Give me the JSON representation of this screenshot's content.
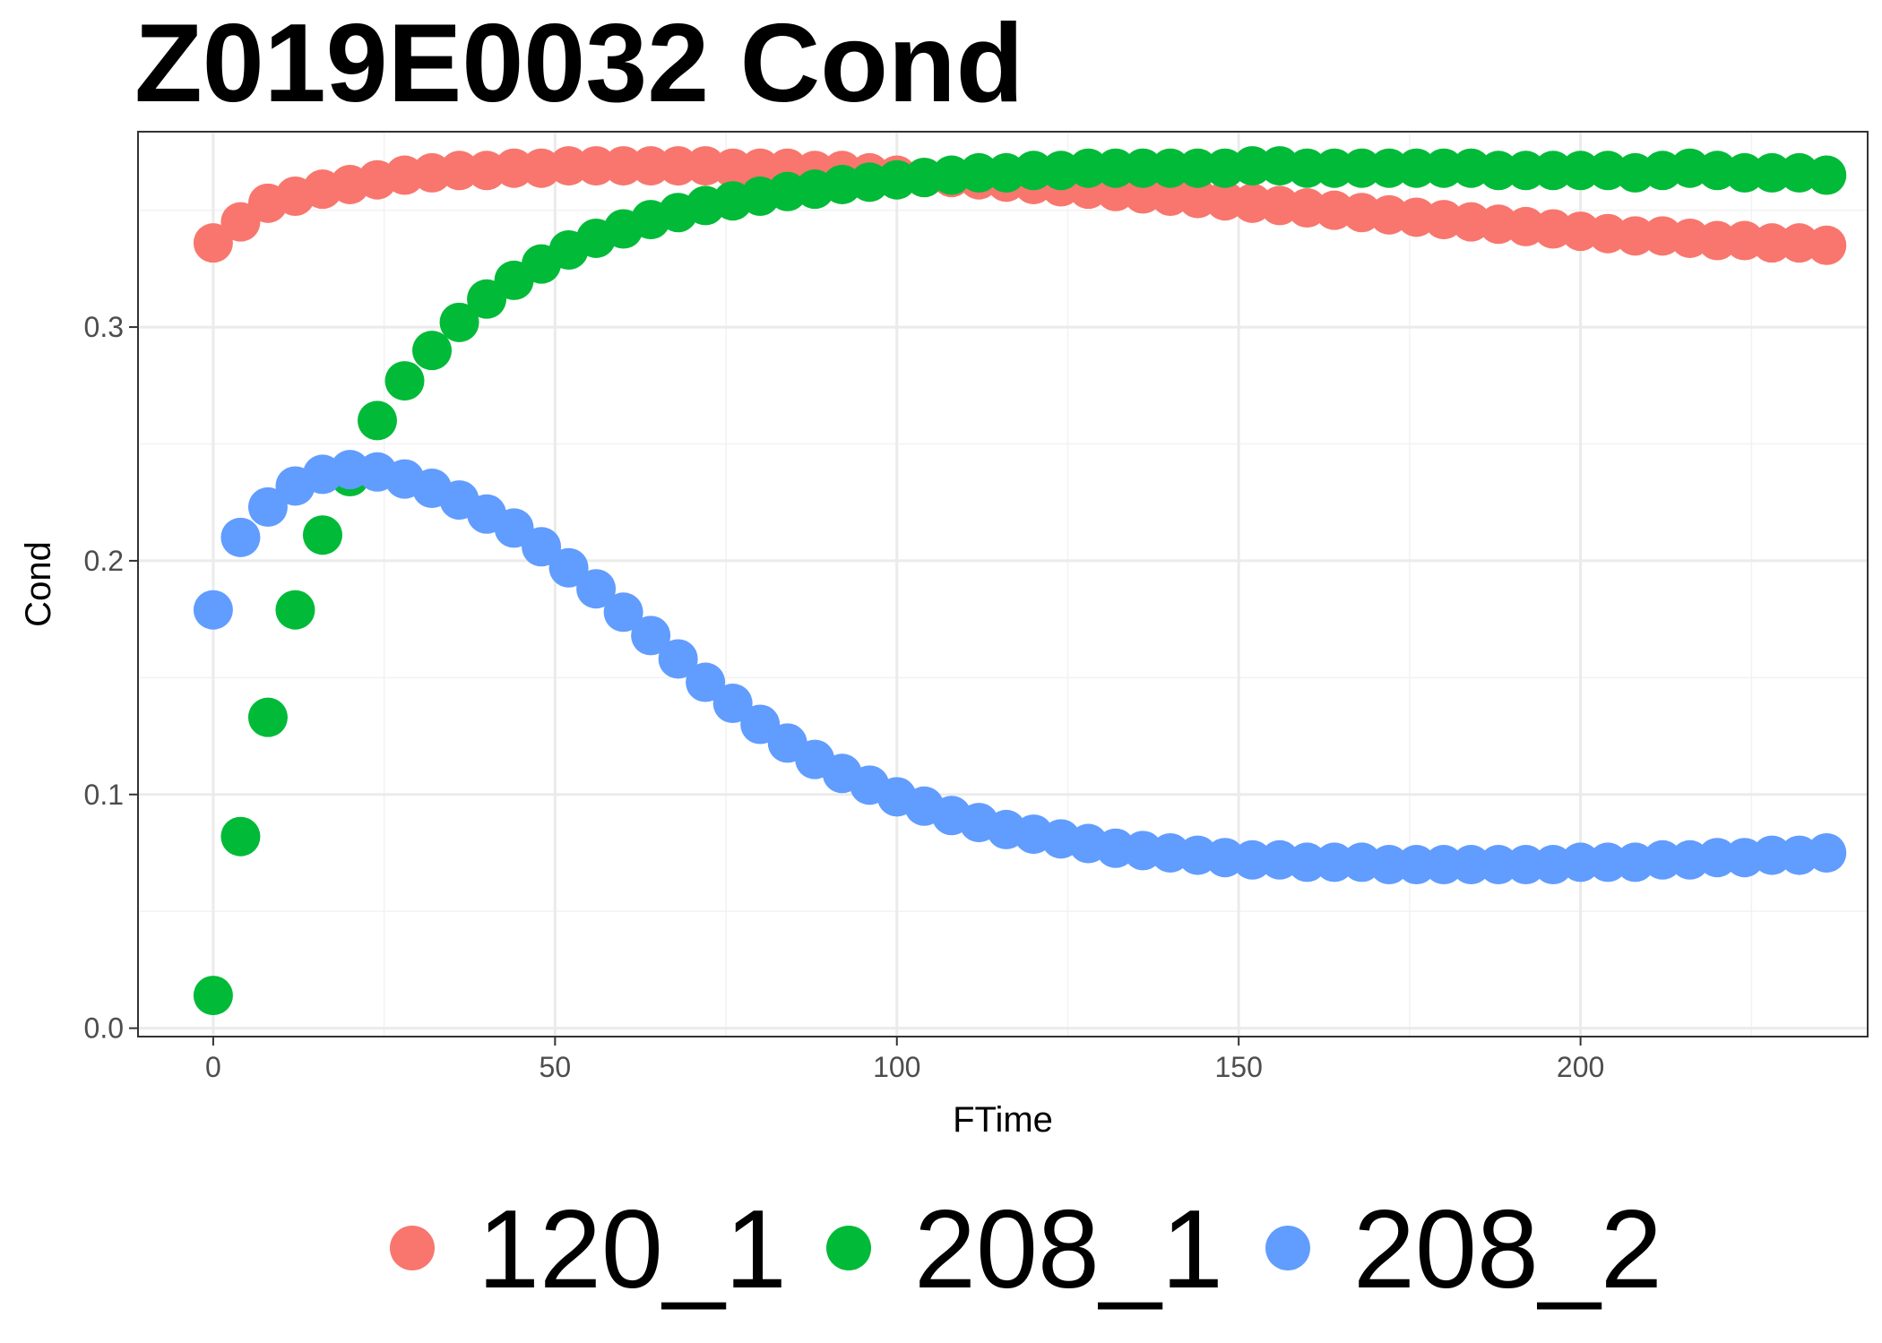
{
  "chart_data": {
    "type": "scatter",
    "title": "Z019E0032 Cond",
    "xlabel": "FTime",
    "ylabel": "Cond",
    "xlim": [
      -11,
      242
    ],
    "ylim": [
      -0.0036,
      0.3836
    ],
    "x_ticks": [
      0,
      50,
      100,
      150,
      200
    ],
    "x_tick_labels": [
      "0",
      "50",
      "100",
      "150",
      "200"
    ],
    "y_ticks": [
      0.0,
      0.1,
      0.2,
      0.3
    ],
    "y_tick_labels": [
      "0.0",
      "0.1",
      "0.2",
      "0.3"
    ],
    "grid": true,
    "legend_position": "bottom",
    "x": [
      0,
      4,
      8,
      12,
      16,
      20,
      24,
      28,
      32,
      36,
      40,
      44,
      48,
      52,
      56,
      60,
      64,
      68,
      72,
      76,
      80,
      84,
      88,
      92,
      96,
      100,
      104,
      108,
      112,
      116,
      120,
      124,
      128,
      132,
      136,
      140,
      144,
      148,
      152,
      156,
      160,
      164,
      168,
      172,
      176,
      180,
      184,
      188,
      192,
      196,
      200,
      204,
      208,
      212,
      216,
      220,
      224,
      228,
      232,
      236
    ],
    "series": [
      {
        "name": "120_1",
        "color": "#F8766D",
        "values": [
          0.336,
          0.345,
          0.353,
          0.356,
          0.359,
          0.361,
          0.363,
          0.365,
          0.366,
          0.367,
          0.367,
          0.368,
          0.368,
          0.369,
          0.369,
          0.369,
          0.369,
          0.369,
          0.369,
          0.368,
          0.368,
          0.368,
          0.367,
          0.367,
          0.366,
          0.365,
          0.364,
          0.364,
          0.363,
          0.362,
          0.361,
          0.36,
          0.359,
          0.358,
          0.357,
          0.356,
          0.355,
          0.354,
          0.353,
          0.352,
          0.351,
          0.35,
          0.349,
          0.348,
          0.347,
          0.346,
          0.345,
          0.344,
          0.343,
          0.342,
          0.341,
          0.34,
          0.339,
          0.339,
          0.338,
          0.337,
          0.337,
          0.336,
          0.336,
          0.335
        ]
      },
      {
        "name": "208_1",
        "color": "#00BA38",
        "values": [
          0.014,
          0.082,
          0.133,
          0.179,
          0.211,
          0.236,
          0.26,
          0.277,
          0.29,
          0.302,
          0.312,
          0.32,
          0.327,
          0.333,
          0.338,
          0.342,
          0.346,
          0.349,
          0.352,
          0.354,
          0.356,
          0.358,
          0.359,
          0.361,
          0.362,
          0.363,
          0.364,
          0.365,
          0.366,
          0.366,
          0.367,
          0.367,
          0.368,
          0.368,
          0.368,
          0.368,
          0.368,
          0.368,
          0.369,
          0.369,
          0.368,
          0.368,
          0.368,
          0.368,
          0.368,
          0.368,
          0.368,
          0.367,
          0.367,
          0.367,
          0.367,
          0.367,
          0.366,
          0.367,
          0.368,
          0.367,
          0.366,
          0.366,
          0.366,
          0.365
        ]
      },
      {
        "name": "208_2",
        "color": "#619CFF",
        "values": [
          0.179,
          0.21,
          0.223,
          0.232,
          0.237,
          0.239,
          0.238,
          0.235,
          0.231,
          0.226,
          0.22,
          0.214,
          0.206,
          0.197,
          0.188,
          0.178,
          0.168,
          0.158,
          0.148,
          0.139,
          0.13,
          0.122,
          0.115,
          0.109,
          0.104,
          0.099,
          0.095,
          0.091,
          0.088,
          0.085,
          0.083,
          0.081,
          0.079,
          0.077,
          0.076,
          0.075,
          0.074,
          0.073,
          0.072,
          0.072,
          0.071,
          0.071,
          0.071,
          0.07,
          0.07,
          0.07,
          0.07,
          0.07,
          0.07,
          0.07,
          0.071,
          0.071,
          0.071,
          0.072,
          0.072,
          0.073,
          0.073,
          0.074,
          0.074,
          0.075
        ]
      }
    ]
  }
}
